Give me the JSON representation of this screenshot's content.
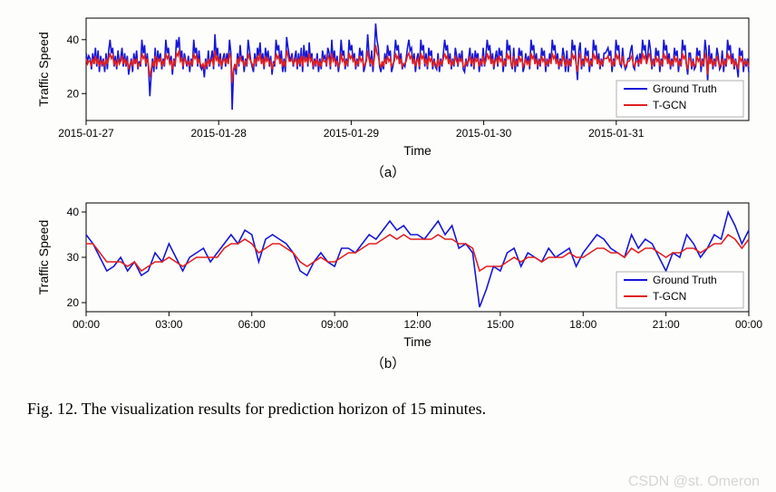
{
  "colors": {
    "ground_truth": "#1616d8",
    "tgcn": "#e02020",
    "axis": "#000000",
    "legend_border": "#b0b0b0",
    "background": "#ffffff"
  },
  "chart_a": {
    "type": "line",
    "ylabel": "Traffic Speed",
    "xlabel": "Time",
    "ylim": [
      10,
      48
    ],
    "yticks": [
      20,
      40
    ],
    "xlim": [
      0,
      500
    ],
    "xtick_positions": [
      0,
      100,
      200,
      300,
      400
    ],
    "xtick_labels": [
      "2015-01-27",
      "2015-01-28",
      "2015-01-29",
      "2015-01-30",
      "2015-01-31"
    ],
    "legend": {
      "items": [
        "Ground Truth",
        "T-GCN"
      ],
      "pos": "lower-right"
    },
    "caption": "（a）",
    "series": {
      "ground_truth": [
        35,
        32,
        34,
        33,
        29,
        35,
        31,
        37,
        30,
        36,
        28,
        34,
        30,
        33,
        28,
        35,
        29,
        36,
        40,
        35,
        37,
        30,
        34,
        29,
        36,
        31,
        33,
        37,
        30,
        35,
        30,
        34,
        27,
        30,
        33,
        28,
        35,
        31,
        36,
        29,
        32,
        30,
        40,
        35,
        38,
        30,
        35,
        29,
        19,
        27,
        33,
        28,
        37,
        29,
        36,
        32,
        35,
        29,
        33,
        30,
        40,
        35,
        37,
        31,
        34,
        27,
        33,
        30,
        40,
        37,
        41,
        33,
        36,
        29,
        35,
        32,
        30,
        34,
        28,
        33,
        30,
        40,
        35,
        37,
        30,
        36,
        30,
        29,
        31,
        26,
        33,
        29,
        36,
        30,
        33,
        36,
        29,
        42,
        34,
        37,
        30,
        35,
        29,
        33,
        35,
        30,
        35,
        31,
        40,
        35,
        14,
        28,
        31,
        27,
        35,
        30,
        38,
        32,
        34,
        28,
        33,
        30,
        40,
        36,
        32,
        30,
        28,
        35,
        30,
        37,
        34,
        39,
        31,
        35,
        29,
        37,
        33,
        36,
        30,
        34,
        27,
        32,
        30,
        40,
        36,
        38,
        31,
        36,
        28,
        33,
        28,
        41,
        37,
        34,
        32,
        35,
        30,
        33,
        36,
        29,
        35,
        30,
        37,
        28,
        38,
        33,
        36,
        30,
        39,
        32,
        35,
        29,
        33,
        30,
        35,
        28,
        33,
        29,
        36,
        33,
        34,
        30,
        37,
        35,
        29,
        40,
        32,
        36,
        30,
        34,
        28,
        32,
        40,
        34,
        36,
        29,
        33,
        30,
        40,
        36,
        38,
        32,
        35,
        29,
        33,
        30,
        37,
        34,
        36,
        28,
        30,
        33,
        42,
        35,
        30,
        36,
        28,
        35,
        46,
        40,
        37,
        30,
        28,
        32,
        29,
        35,
        31,
        38,
        34,
        36,
        28,
        30,
        33,
        40,
        36,
        38,
        31,
        35,
        29,
        31,
        30,
        33,
        37,
        40,
        36,
        37,
        31,
        35,
        28,
        33,
        35,
        29,
        40,
        36,
        38,
        30,
        35,
        29,
        37,
        34,
        36,
        29,
        33,
        30,
        29,
        35,
        28,
        33,
        30,
        35,
        40,
        36,
        38,
        31,
        35,
        29,
        33,
        30,
        37,
        34,
        30,
        35,
        32,
        36,
        29,
        28,
        33,
        30,
        33,
        37,
        30,
        35,
        29,
        36,
        33,
        35,
        28,
        33,
        30,
        37,
        30,
        34,
        40,
        36,
        38,
        31,
        35,
        29,
        33,
        36,
        30,
        37,
        34,
        36,
        28,
        33,
        30,
        40,
        36,
        38,
        31,
        29,
        37,
        28,
        33,
        30,
        37,
        34,
        36,
        28,
        30,
        35,
        31,
        34,
        29,
        40,
        36,
        38,
        31,
        35,
        29,
        33,
        30,
        37,
        34,
        36,
        28,
        33,
        30,
        35,
        31,
        40,
        36,
        38,
        31,
        35,
        29,
        33,
        30,
        37,
        34,
        28,
        36,
        28,
        33,
        30,
        40,
        36,
        38,
        31,
        25,
        36,
        39,
        29,
        33,
        30,
        37,
        34,
        36,
        28,
        33,
        30,
        40,
        36,
        38,
        31,
        35,
        29,
        33,
        30,
        35,
        35,
        36,
        37,
        34,
        36,
        28,
        33,
        30,
        40,
        36,
        38,
        31,
        30,
        37,
        31,
        29,
        30,
        33,
        33,
        36,
        38,
        30,
        29,
        33,
        34,
        30,
        35,
        31,
        40,
        36,
        38,
        31,
        35,
        40,
        36,
        29,
        33,
        30,
        37,
        34,
        36,
        28,
        33,
        30,
        40,
        36,
        38,
        31,
        35,
        29,
        33,
        30,
        37,
        34,
        36,
        28,
        33,
        30,
        40,
        36,
        38,
        31,
        27,
        35,
        35,
        29,
        33,
        29,
        30,
        37,
        34,
        36,
        28,
        33,
        30,
        40,
        36,
        24,
        38,
        31,
        35,
        29,
        33,
        30,
        37,
        34,
        29,
        30,
        36,
        28,
        33,
        30,
        40,
        36,
        38,
        31,
        35,
        29,
        33,
        30,
        26,
        37,
        34,
        36,
        28,
        33,
        30,
        33,
        28
      ],
      "tgcn": [
        33,
        31,
        32,
        32,
        30,
        33,
        31,
        34,
        31,
        33,
        30,
        32,
        31,
        32,
        30,
        33,
        31,
        33,
        35,
        33,
        34,
        31,
        32,
        30,
        33,
        31,
        32,
        34,
        31,
        33,
        31,
        32,
        29,
        31,
        32,
        30,
        33,
        31,
        33,
        30,
        31,
        31,
        35,
        33,
        34,
        31,
        33,
        30,
        26,
        29,
        32,
        30,
        34,
        30,
        33,
        32,
        33,
        30,
        32,
        31,
        35,
        33,
        34,
        31,
        32,
        29,
        32,
        31,
        35,
        34,
        36,
        32,
        33,
        30,
        33,
        32,
        31,
        32,
        30,
        32,
        31,
        35,
        33,
        34,
        31,
        33,
        31,
        30,
        31,
        29,
        32,
        30,
        33,
        31,
        32,
        33,
        30,
        36,
        32,
        34,
        31,
        33,
        30,
        32,
        33,
        31,
        33,
        31,
        35,
        33,
        24,
        29,
        31,
        29,
        33,
        31,
        34,
        32,
        32,
        30,
        32,
        31,
        35,
        33,
        32,
        31,
        30,
        33,
        31,
        34,
        32,
        35,
        31,
        33,
        30,
        34,
        32,
        33,
        31,
        32,
        29,
        31,
        31,
        35,
        33,
        34,
        31,
        33,
        30,
        32,
        30,
        36,
        34,
        32,
        32,
        33,
        31,
        32,
        33,
        30,
        33,
        31,
        34,
        30,
        34,
        32,
        33,
        31,
        35,
        32,
        33,
        30,
        32,
        31,
        33,
        30,
        32,
        30,
        33,
        32,
        32,
        31,
        34,
        33,
        30,
        35,
        32,
        33,
        31,
        32,
        30,
        31,
        35,
        32,
        33,
        30,
        32,
        31,
        35,
        33,
        34,
        32,
        33,
        30,
        32,
        31,
        34,
        32,
        33,
        30,
        31,
        32,
        36,
        33,
        31,
        33,
        30,
        33,
        38,
        35,
        34,
        31,
        30,
        32,
        30,
        33,
        31,
        34,
        32,
        33,
        30,
        31,
        32,
        35,
        33,
        34,
        31,
        33,
        30,
        31,
        31,
        32,
        34,
        35,
        33,
        34,
        31,
        33,
        30,
        32,
        33,
        30,
        35,
        33,
        34,
        31,
        33,
        30,
        34,
        32,
        33,
        30,
        32,
        31,
        30,
        33,
        30,
        32,
        31,
        33,
        35,
        33,
        34,
        31,
        33,
        30,
        32,
        31,
        34,
        32,
        31,
        33,
        32,
        33,
        30,
        30,
        32,
        31,
        32,
        34,
        31,
        33,
        30,
        33,
        32,
        33,
        30,
        32,
        31,
        34,
        31,
        32,
        35,
        33,
        34,
        31,
        33,
        30,
        32,
        33,
        31,
        34,
        32,
        33,
        30,
        32,
        31,
        35,
        33,
        34,
        31,
        30,
        34,
        30,
        32,
        31,
        34,
        32,
        33,
        30,
        31,
        33,
        31,
        32,
        30,
        35,
        33,
        34,
        31,
        33,
        30,
        32,
        31,
        34,
        32,
        33,
        30,
        32,
        31,
        33,
        31,
        35,
        33,
        34,
        31,
        33,
        30,
        32,
        31,
        34,
        32,
        30,
        33,
        30,
        32,
        31,
        35,
        33,
        34,
        31,
        28,
        33,
        35,
        30,
        32,
        31,
        34,
        32,
        33,
        30,
        32,
        31,
        35,
        33,
        34,
        31,
        33,
        30,
        32,
        31,
        33,
        33,
        33,
        34,
        32,
        33,
        30,
        32,
        31,
        35,
        33,
        34,
        31,
        31,
        34,
        31,
        30,
        31,
        32,
        32,
        33,
        34,
        31,
        30,
        32,
        32,
        31,
        33,
        31,
        35,
        33,
        34,
        31,
        33,
        35,
        33,
        30,
        32,
        31,
        34,
        32,
        33,
        30,
        32,
        31,
        35,
        33,
        34,
        31,
        33,
        30,
        32,
        31,
        34,
        32,
        33,
        30,
        32,
        31,
        35,
        33,
        34,
        31,
        29,
        33,
        33,
        30,
        32,
        30,
        31,
        34,
        32,
        33,
        30,
        32,
        31,
        35,
        33,
        27,
        34,
        31,
        33,
        30,
        32,
        31,
        34,
        32,
        30,
        31,
        33,
        30,
        32,
        31,
        35,
        33,
        34,
        31,
        33,
        30,
        32,
        31,
        29,
        34,
        32,
        33,
        30,
        32,
        31,
        32,
        30
      ]
    }
  },
  "chart_b": {
    "type": "line",
    "ylabel": "Traffic Speed",
    "xlabel": "Time",
    "ylim": [
      18,
      42
    ],
    "yticks": [
      20,
      30,
      40
    ],
    "xlim": [
      0,
      96
    ],
    "xtick_positions": [
      0,
      12,
      24,
      36,
      48,
      60,
      72,
      84,
      96
    ],
    "xtick_labels": [
      "00:00",
      "03:00",
      "06:00",
      "09:00",
      "12:00",
      "15:00",
      "18:00",
      "21:00",
      "00:00"
    ],
    "legend": {
      "items": [
        "Ground Truth",
        "T-GCN"
      ],
      "pos": "lower-right"
    },
    "caption": "（b）",
    "series": {
      "ground_truth": [
        35,
        33,
        30,
        27,
        28,
        30,
        27,
        29,
        26,
        27,
        31,
        29,
        33,
        30,
        27,
        30,
        31,
        32,
        29,
        31,
        33,
        35,
        33,
        36,
        35,
        29,
        34,
        35,
        34,
        33,
        31,
        27,
        26,
        29,
        31,
        29,
        28,
        32,
        32,
        31,
        33,
        35,
        34,
        36,
        38,
        36,
        37,
        35,
        35,
        34,
        36,
        38,
        35,
        37,
        32,
        33,
        31,
        19,
        23,
        28,
        27,
        31,
        32,
        28,
        31,
        30,
        29,
        32,
        30,
        31,
        32,
        28,
        31,
        33,
        35,
        34,
        32,
        31,
        30,
        35,
        32,
        34,
        33,
        30,
        27,
        31,
        30,
        35,
        33,
        30,
        32,
        35,
        34,
        40,
        37,
        33,
        36
      ],
      "tgcn": [
        33,
        33,
        31,
        29,
        29,
        29,
        28,
        29,
        27,
        28,
        29,
        29,
        30,
        29,
        28,
        29,
        30,
        30,
        30,
        30,
        32,
        33,
        33,
        34,
        33,
        31,
        32,
        33,
        33,
        32,
        31,
        29,
        28,
        29,
        30,
        29,
        29,
        30,
        31,
        31,
        32,
        33,
        33,
        34,
        35,
        34,
        35,
        34,
        34,
        34,
        34,
        35,
        34,
        34,
        33,
        33,
        32,
        27,
        28,
        28,
        28,
        29,
        30,
        29,
        30,
        30,
        29,
        30,
        30,
        30,
        31,
        30,
        30,
        31,
        32,
        32,
        31,
        31,
        30,
        32,
        31,
        32,
        32,
        31,
        30,
        31,
        31,
        32,
        32,
        31,
        32,
        33,
        33,
        35,
        34,
        32,
        34
      ]
    }
  },
  "figure_caption": "Fig. 12.   The visualization results for prediction horizon of 15 minutes.",
  "watermark": "CSDN @st. Omeron"
}
